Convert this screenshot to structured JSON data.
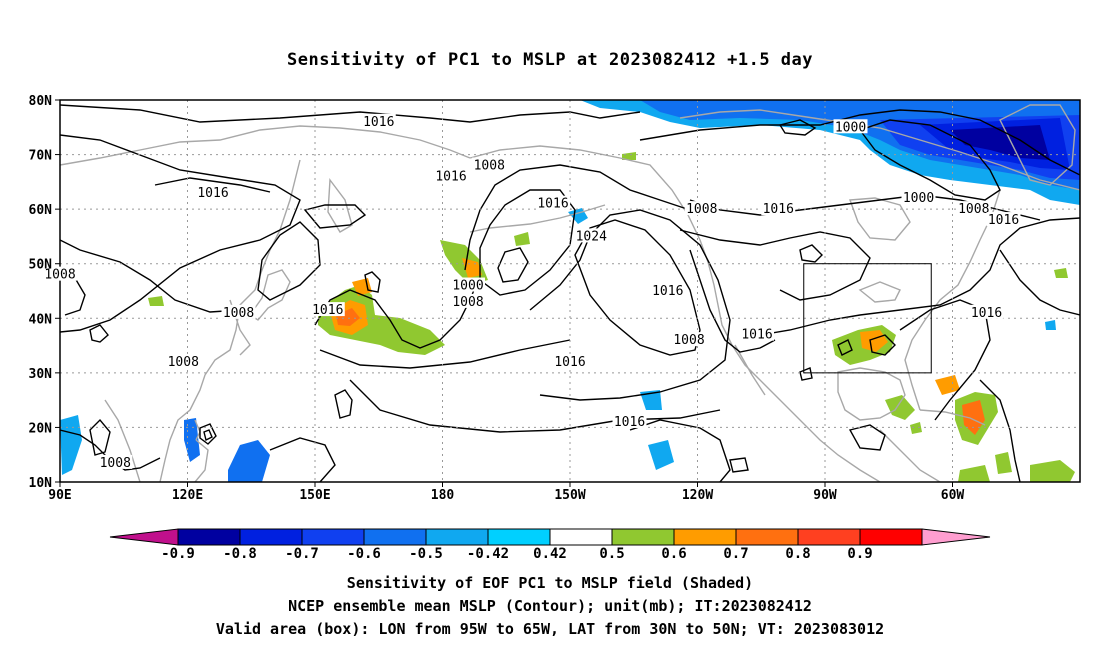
{
  "title": "Sensitivity of PC1 to MSLP at 2023082412 +1.5 day",
  "map": {
    "lat_labels": [
      "80N",
      "70N",
      "60N",
      "50N",
      "40N",
      "30N",
      "20N",
      "10N"
    ],
    "lon_labels": [
      "90E",
      "120E",
      "150E",
      "180",
      "150W",
      "120W",
      "90W",
      "60W"
    ],
    "contour_labels": [
      {
        "text": "1016",
        "lon": 165,
        "lat": 76
      },
      {
        "text": "1016",
        "lon": 126,
        "lat": 63
      },
      {
        "text": "1008",
        "lon": 90,
        "lat": 48
      },
      {
        "text": "1008",
        "lon": 132,
        "lat": 41
      },
      {
        "text": "1016",
        "lon": 153,
        "lat": 41.5
      },
      {
        "text": "1008",
        "lon": 119,
        "lat": 32
      },
      {
        "text": "1008",
        "lon": 103,
        "lat": 13.5
      },
      {
        "text": "1016",
        "lon": 182,
        "lat": 66
      },
      {
        "text": "1008",
        "lon": -169,
        "lat": 68
      },
      {
        "text": "1000",
        "lon": -174,
        "lat": 46
      },
      {
        "text": "1008",
        "lon": -174,
        "lat": 43
      },
      {
        "text": "1016",
        "lon": -150,
        "lat": 32
      },
      {
        "text": "1016",
        "lon": -154,
        "lat": 61
      },
      {
        "text": "1024",
        "lon": -145,
        "lat": 55
      },
      {
        "text": "1016",
        "lon": -127,
        "lat": 45
      },
      {
        "text": "1008",
        "lon": -122,
        "lat": 36
      },
      {
        "text": "1016",
        "lon": -106,
        "lat": 37
      },
      {
        "text": "1008",
        "lon": -119,
        "lat": 60
      },
      {
        "text": "1016",
        "lon": -101,
        "lat": 60
      },
      {
        "text": "1016",
        "lon": -136,
        "lat": 21
      },
      {
        "text": "1000",
        "lon": -84,
        "lat": 75
      },
      {
        "text": "1000",
        "lon": -68,
        "lat": 62
      },
      {
        "text": "1008",
        "lon": -55,
        "lat": 60
      },
      {
        "text": "1016",
        "lon": -48,
        "lat": 58
      },
      {
        "text": "1016",
        "lon": -52,
        "lat": 41
      }
    ],
    "valid_box": {
      "lon_min": -95,
      "lon_max": -65,
      "lat_min": 30,
      "lat_max": 50
    }
  },
  "colorbar": {
    "colors": [
      "#c0108c",
      "#0000a0",
      "#0020e0",
      "#1040f0",
      "#1070f0",
      "#10a8f0",
      "#00d0ff",
      "#ffffff",
      "#90c830",
      "#ff9c00",
      "#ff7010",
      "#ff4020",
      "#ff0000",
      "#ff9ed0"
    ],
    "labels": [
      "-0.9",
      "-0.8",
      "-0.7",
      "-0.6",
      "-0.5",
      "-0.42",
      "0.42",
      "0.5",
      "0.6",
      "0.7",
      "0.8",
      "0.9"
    ]
  },
  "captions": {
    "line1": "Sensitivity of EOF PC1 to MSLP field (Shaded)",
    "line2": "NCEP ensemble mean MSLP (Contour); unit(mb); IT:2023082412",
    "line3": "Valid area (box): LON from 95W to 65W, LAT from 30N to 50N; VT: 2023083012"
  }
}
